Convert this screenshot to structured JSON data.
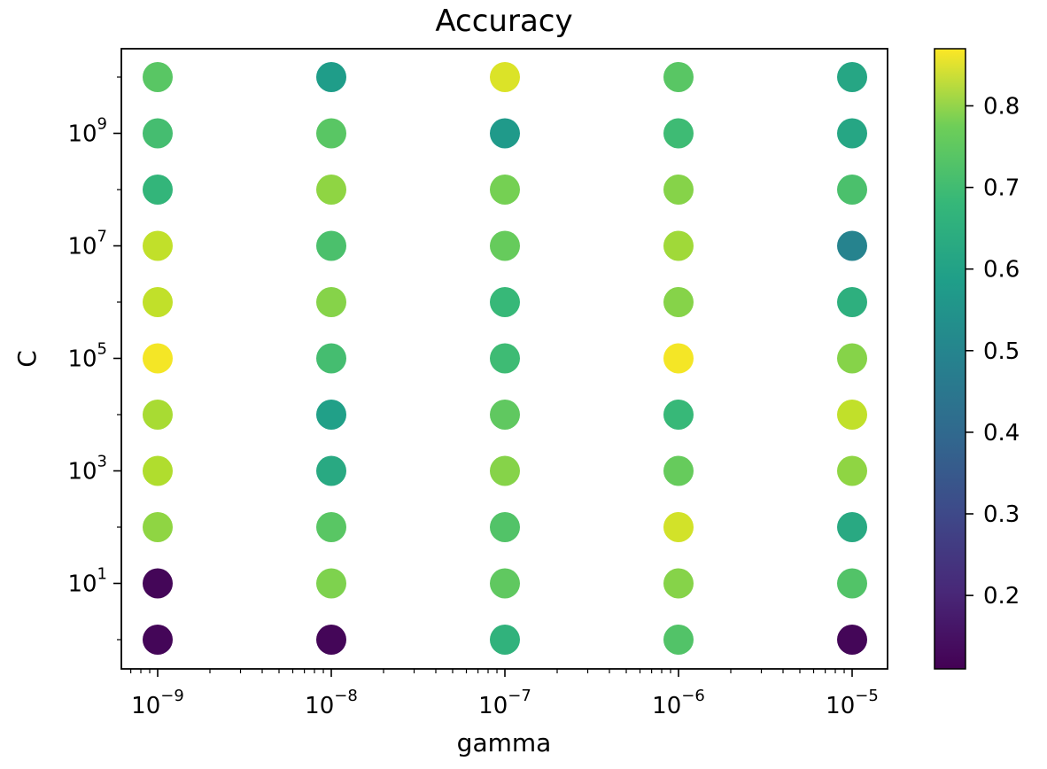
{
  "chart_data": {
    "type": "scatter",
    "title": "Accuracy",
    "xlabel": "gamma",
    "ylabel": "C",
    "x_scale": "log",
    "y_scale": "log",
    "x_ticks": [
      {
        "value": 1e-09,
        "base": "10",
        "exp": "−9"
      },
      {
        "value": 1e-08,
        "base": "10",
        "exp": "−8"
      },
      {
        "value": 1e-07,
        "base": "10",
        "exp": "−7"
      },
      {
        "value": 1e-06,
        "base": "10",
        "exp": "−6"
      },
      {
        "value": 1e-05,
        "base": "10",
        "exp": "−5"
      }
    ],
    "y_ticks": [
      {
        "value": 10,
        "base": "10",
        "exp": "1"
      },
      {
        "value": 1000,
        "base": "10",
        "exp": "3"
      },
      {
        "value": 100000,
        "base": "10",
        "exp": "5"
      },
      {
        "value": 10000000,
        "base": "10",
        "exp": "7"
      },
      {
        "value": 1000000000,
        "base": "10",
        "exp": "9"
      }
    ],
    "gamma_values": [
      1e-09,
      1e-08,
      1e-07,
      1e-06,
      1e-05
    ],
    "C_values": [
      1,
      10,
      100,
      1000,
      10000,
      100000,
      1000000,
      10000000,
      100000000,
      1000000000,
      10000000000
    ],
    "accuracy_grid": [
      [
        0.12,
        0.12,
        0.6,
        0.66,
        0.12
      ],
      [
        0.12,
        0.72,
        0.68,
        0.73,
        0.66
      ],
      [
        0.74,
        0.67,
        0.66,
        0.82,
        0.57
      ],
      [
        0.78,
        0.57,
        0.73,
        0.69,
        0.74
      ],
      [
        0.77,
        0.54,
        0.68,
        0.62,
        0.8
      ],
      [
        0.86,
        0.64,
        0.63,
        0.86,
        0.73
      ],
      [
        0.8,
        0.73,
        0.62,
        0.73,
        0.59
      ],
      [
        0.8,
        0.65,
        0.69,
        0.76,
        0.45
      ],
      [
        0.61,
        0.74,
        0.71,
        0.73,
        0.65
      ],
      [
        0.64,
        0.67,
        0.52,
        0.63,
        0.56
      ],
      [
        0.67,
        0.53,
        0.83,
        0.67,
        0.56
      ]
    ],
    "colorbar": {
      "min": 0.11,
      "max": 0.87,
      "ticks": [
        "0.2",
        "0.3",
        "0.4",
        "0.5",
        "0.6",
        "0.7",
        "0.8"
      ],
      "colormap": "viridis"
    },
    "grid": false,
    "legend": "none"
  }
}
